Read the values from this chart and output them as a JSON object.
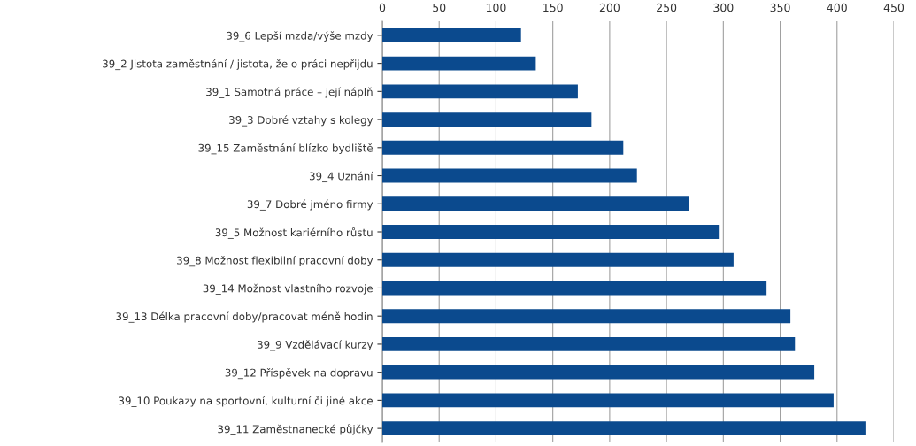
{
  "chart_data": {
    "type": "bar",
    "orientation": "horizontal",
    "categories": [
      "39_6 Lepší mzda/výše mzdy",
      "39_2 Jistota zaměstnání / jistota, že o práci nepřijdu",
      "39_1 Samotná práce – její náplň",
      "39_3 Dobré vztahy s kolegy",
      "39_15 Zaměstnání blízko bydliště",
      "39_4 Uznání",
      "39_7 Dobré jméno firmy",
      "39_5 Možnost kariérního růstu",
      "39_8 Možnost flexibilní pracovní doby",
      "39_14 Možnost vlastního rozvoje",
      "39_13 Délka pracovní doby/pracovat méně hodin",
      "39_9 Vzdělávací kurzy",
      "39_12 Příspěvek na dopravu",
      "39_10 Poukazy na sportovní, kulturní či jiné akce",
      "39_11 Zaměstnanecké půjčky"
    ],
    "values": [
      122,
      135,
      172,
      184,
      212,
      224,
      270,
      296,
      309,
      338,
      359,
      363,
      380,
      397,
      425
    ],
    "color": "#0b4a8e",
    "xlim": [
      0,
      450
    ],
    "xticks": [
      0,
      50,
      100,
      150,
      200,
      250,
      300,
      350,
      400,
      450
    ],
    "grid": "x"
  }
}
